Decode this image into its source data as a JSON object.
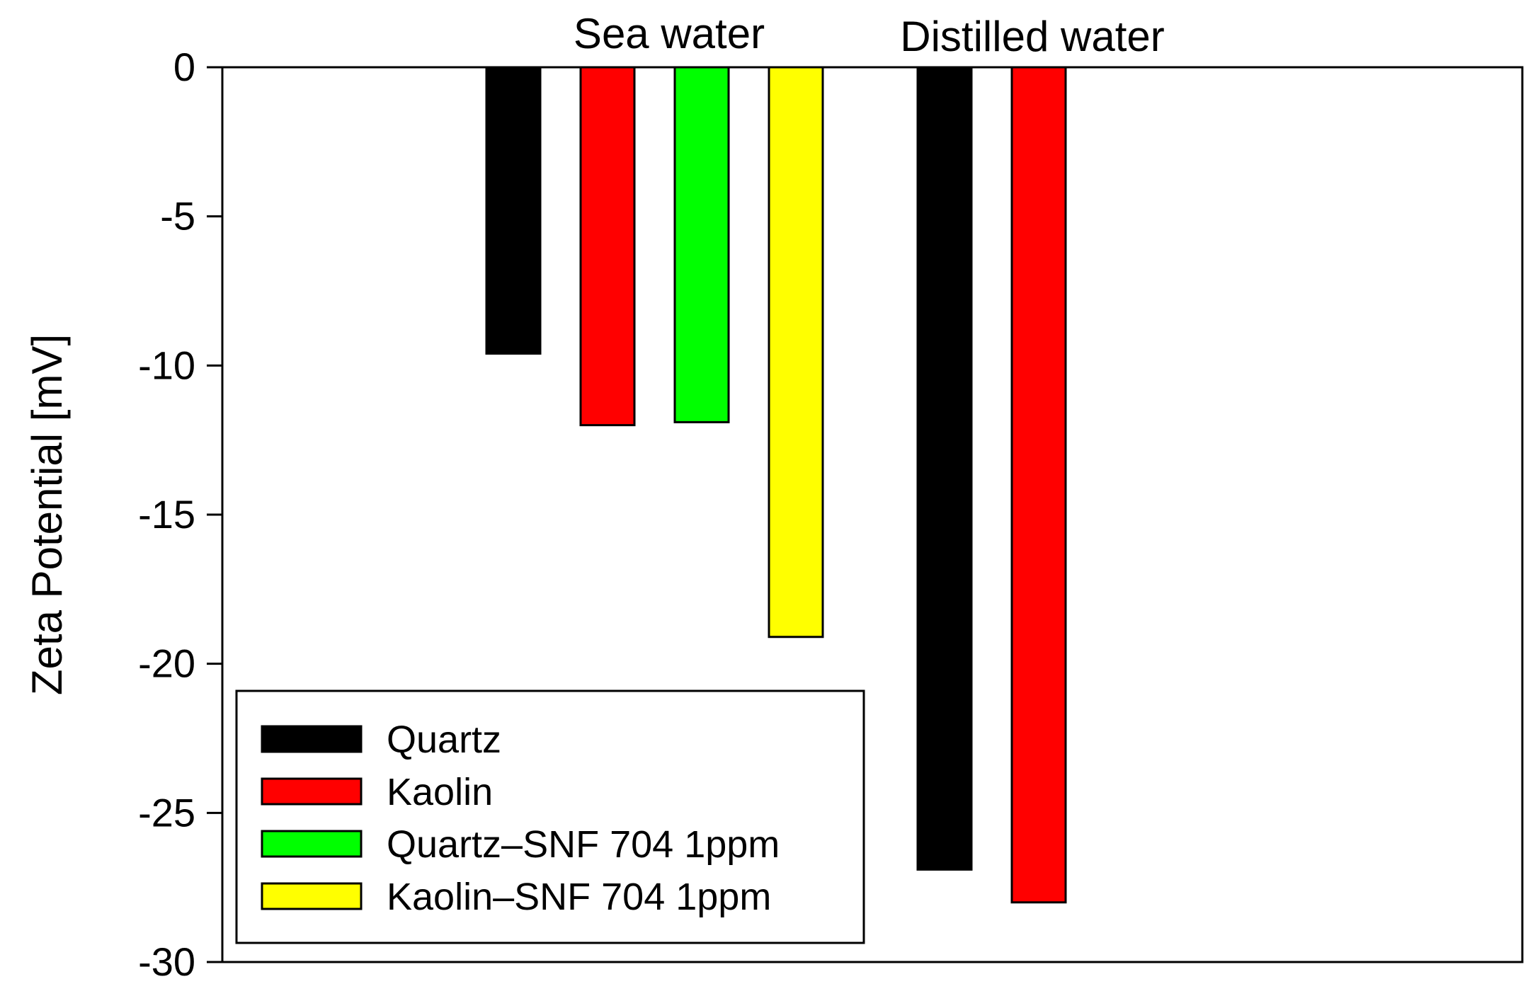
{
  "chart_data": {
    "type": "bar",
    "title": "",
    "xlabel": "",
    "ylabel": "Zeta Potential [mV]",
    "ylim": [
      -30,
      0
    ],
    "yticks": [
      0,
      -5,
      -10,
      -15,
      -20,
      -25,
      -30
    ],
    "ytick_labels": [
      "0",
      "-5",
      "-10",
      "-15",
      "-20",
      "-25",
      "-30"
    ],
    "grid": false,
    "legend_position": "bottom-left",
    "groups": [
      {
        "label": "Sea water",
        "bars": [
          {
            "series": "Quartz",
            "value": -9.6
          },
          {
            "series": "Kaolin",
            "value": -12.0
          },
          {
            "series": "Quartz–SNF 704 1ppm",
            "value": -11.9
          },
          {
            "series": "Kaolin–SNF 704 1ppm",
            "value": -19.1
          }
        ]
      },
      {
        "label": "Distilled water",
        "bars": [
          {
            "series": "Quartz",
            "value": -26.9
          },
          {
            "series": "Kaolin",
            "value": -28.0
          }
        ]
      }
    ],
    "series": [
      {
        "name": "Quartz",
        "color": "#000000"
      },
      {
        "name": "Kaolin",
        "color": "#ff0000"
      },
      {
        "name": "Quartz–SNF 704 1ppm",
        "color": "#00ff00"
      },
      {
        "name": "Kaolin–SNF 704 1ppm",
        "color": "#ffff00"
      }
    ]
  }
}
